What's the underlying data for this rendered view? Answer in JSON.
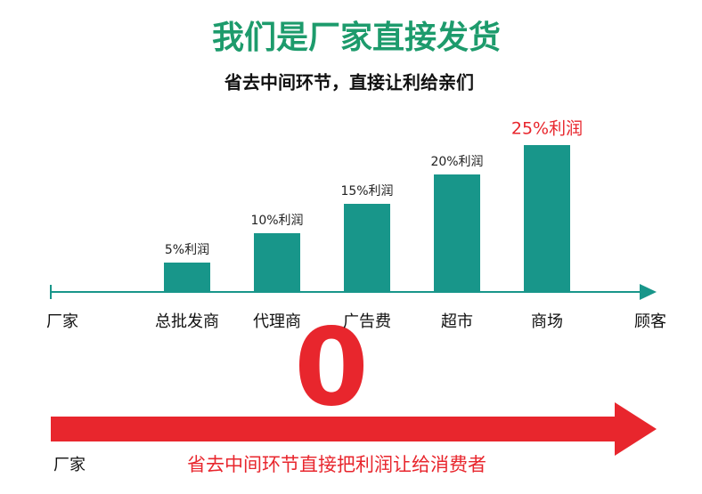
{
  "chart_data": {
    "type": "bar",
    "title": "我们是厂家直接发货",
    "subtitle": "省去中间环节，直接让利给亲们",
    "axis_start_label": "厂家",
    "axis_end_label": "顾客",
    "categories": [
      "总批发商",
      "代理商",
      "广告费",
      "超市",
      "商场"
    ],
    "values": [
      5,
      10,
      15,
      20,
      25
    ],
    "value_labels": [
      "5%利润",
      "10%利润",
      "15%利润",
      "20%利润",
      "25%利润"
    ],
    "label_colors": [
      "#222222",
      "#222222",
      "#222222",
      "#222222",
      "#e8262d"
    ],
    "color": "#18968a",
    "ylim": [
      0,
      30
    ]
  },
  "footer": {
    "big_number": "0",
    "start_label": "厂家",
    "note": "省去中间环节直接把利润让给消费者",
    "color": "#e8262d"
  }
}
